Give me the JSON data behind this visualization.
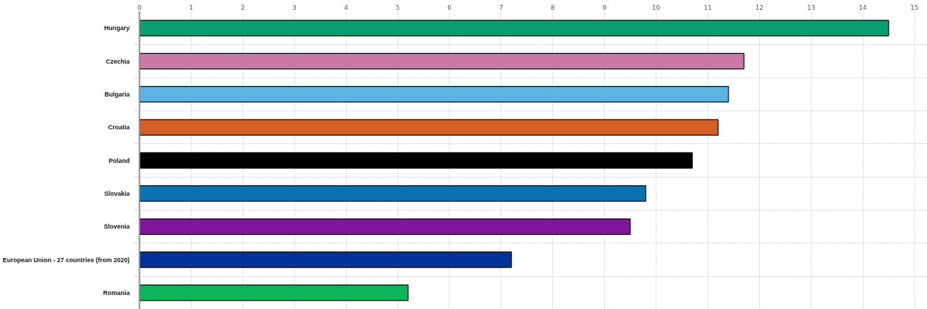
{
  "chart_data": {
    "type": "bar",
    "orientation": "horizontal",
    "categories": [
      "Hungary",
      "Czechia",
      "Bulgaria",
      "Croatia",
      "Poland",
      "Slovakia",
      "Slovenia",
      "European Union - 27 countries (from 2020)",
      "Romania"
    ],
    "values": [
      14.5,
      11.7,
      11.4,
      11.2,
      10.7,
      9.8,
      9.5,
      7.2,
      5.2
    ],
    "colors": [
      "#089e72",
      "#cc78a5",
      "#5db3e4",
      "#d46028",
      "#000000",
      "#0873b3",
      "#82169b",
      "#00329a",
      "#0cb55a"
    ],
    "xlim": [
      0,
      15.25
    ],
    "xticks": [
      0,
      1,
      2,
      3,
      4,
      5,
      6,
      7,
      8,
      9,
      10,
      11,
      12,
      13,
      14,
      15
    ],
    "grid": true
  }
}
